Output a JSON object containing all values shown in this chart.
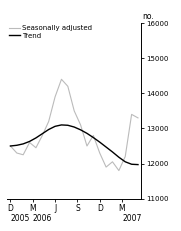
{
  "title": "",
  "ylabel": "no.",
  "ylim": [
    11000,
    16000
  ],
  "yticks": [
    11000,
    12000,
    13000,
    14000,
    15000,
    16000
  ],
  "xtick_labels": [
    "D",
    "M",
    "J",
    "S",
    "D",
    "M"
  ],
  "trend_color": "#000000",
  "seasonal_color": "#bbbbbb",
  "background_color": "#ffffff",
  "legend_entries": [
    "Trend",
    "Seasonally adjusted"
  ],
  "trend_y": [
    12500,
    12520,
    12560,
    12630,
    12730,
    12850,
    12970,
    13060,
    13100,
    13090,
    13040,
    12960,
    12860,
    12740,
    12610,
    12470,
    12330,
    12180,
    12050,
    11980,
    11970
  ],
  "seasonal_y": [
    12500,
    12300,
    12250,
    12600,
    12450,
    12800,
    13200,
    13900,
    14400,
    14200,
    13500,
    13100,
    12500,
    12800,
    12300,
    11900,
    12050,
    11800,
    12200,
    13400,
    13300
  ],
  "x_tick_positions": [
    0,
    3.5,
    7,
    10.5,
    14,
    17.5
  ],
  "xlim": [
    -0.5,
    20.5
  ]
}
